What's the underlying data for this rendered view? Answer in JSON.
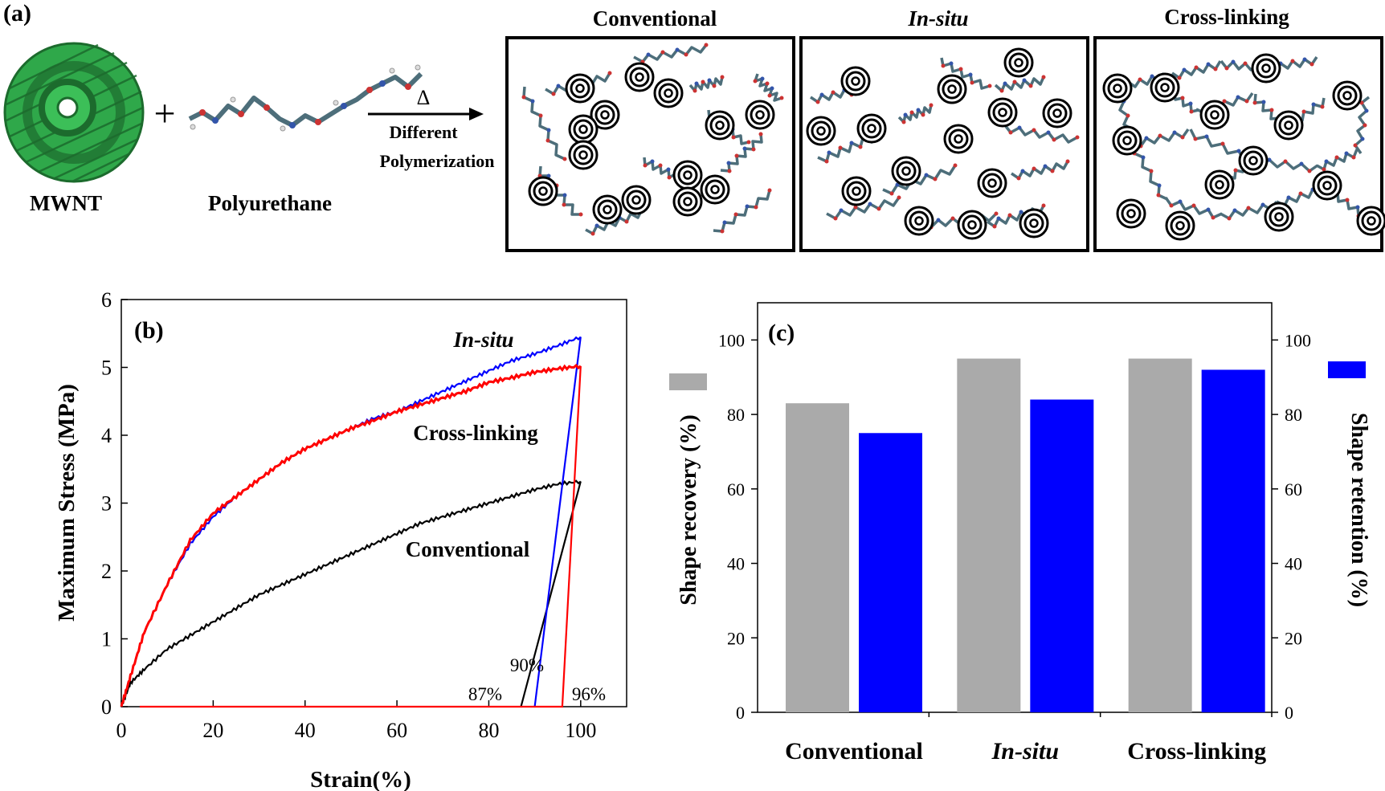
{
  "panel_a": {
    "label": "(a)",
    "mwnt_label": "MWNT",
    "pu_label": "Polyurethane",
    "plus": "+",
    "delta": "Δ",
    "arrow_text_1": "Different",
    "arrow_text_2": "Polymerization",
    "box_titles": [
      "Conventional",
      "In-situ",
      "Cross-linking"
    ],
    "colors": {
      "mwnt_green": "#2fa84a",
      "mwnt_dark": "#1c6b2d",
      "chain": "#4d6e7a",
      "atom_red": "#cc3333",
      "atom_blue": "#3355aa"
    }
  },
  "chart_data": [
    {
      "panel": "(b)",
      "type": "line",
      "xlabel": "Strain(%)",
      "ylabel": "Maximum Stress (MPa)",
      "xlim": [
        0,
        110
      ],
      "ylim": [
        0,
        6
      ],
      "xticks": [
        "0",
        "20",
        "40",
        "60",
        "80",
        "100"
      ],
      "yticks": [
        "0",
        "1",
        "2",
        "3",
        "4",
        "5",
        "6"
      ],
      "grid": false,
      "series": [
        {
          "name": "Conventional",
          "color": "#000000",
          "label": "Conventional",
          "loading": [
            [
              0,
              0
            ],
            [
              2,
              0.35
            ],
            [
              5,
              0.55
            ],
            [
              10,
              0.85
            ],
            [
              15,
              1.05
            ],
            [
              20,
              1.25
            ],
            [
              25,
              1.45
            ],
            [
              30,
              1.65
            ],
            [
              35,
              1.8
            ],
            [
              40,
              1.95
            ],
            [
              45,
              2.1
            ],
            [
              50,
              2.25
            ],
            [
              55,
              2.4
            ],
            [
              60,
              2.55
            ],
            [
              65,
              2.7
            ],
            [
              70,
              2.8
            ],
            [
              75,
              2.9
            ],
            [
              80,
              3.0
            ],
            [
              85,
              3.1
            ],
            [
              90,
              3.2
            ],
            [
              95,
              3.28
            ],
            [
              100,
              3.32
            ]
          ],
          "unloading": [
            [
              100,
              3.32
            ],
            [
              87,
              0
            ],
            [
              87,
              0
            ]
          ]
        },
        {
          "name": "In-situ",
          "color": "#0000ff",
          "label": "In-situ",
          "loading": [
            [
              0,
              0
            ],
            [
              2,
              0.45
            ],
            [
              5,
              1.1
            ],
            [
              10,
              1.8
            ],
            [
              15,
              2.4
            ],
            [
              20,
              2.8
            ],
            [
              25,
              3.1
            ],
            [
              30,
              3.35
            ],
            [
              35,
              3.6
            ],
            [
              40,
              3.8
            ],
            [
              45,
              3.95
            ],
            [
              50,
              4.1
            ],
            [
              55,
              4.25
            ],
            [
              60,
              4.35
            ],
            [
              65,
              4.5
            ],
            [
              70,
              4.65
            ],
            [
              75,
              4.8
            ],
            [
              80,
              4.95
            ],
            [
              85,
              5.1
            ],
            [
              90,
              5.2
            ],
            [
              95,
              5.32
            ],
            [
              100,
              5.45
            ]
          ],
          "unloading": [
            [
              100,
              5.45
            ],
            [
              90,
              0
            ]
          ]
        },
        {
          "name": "Cross-linking",
          "color": "#ff0000",
          "label": "Cross-linking",
          "loading": [
            [
              0,
              0
            ],
            [
              2,
              0.45
            ],
            [
              5,
              1.1
            ],
            [
              10,
              1.8
            ],
            [
              15,
              2.45
            ],
            [
              20,
              2.85
            ],
            [
              25,
              3.1
            ],
            [
              30,
              3.35
            ],
            [
              35,
              3.6
            ],
            [
              40,
              3.8
            ],
            [
              45,
              3.95
            ],
            [
              50,
              4.1
            ],
            [
              55,
              4.22
            ],
            [
              60,
              4.35
            ],
            [
              65,
              4.45
            ],
            [
              70,
              4.55
            ],
            [
              75,
              4.65
            ],
            [
              80,
              4.78
            ],
            [
              85,
              4.85
            ],
            [
              90,
              4.93
            ],
            [
              95,
              4.98
            ],
            [
              100,
              5.02
            ]
          ],
          "unloading": [
            [
              100,
              5.02
            ],
            [
              96,
              0
            ],
            [
              4,
              0
            ]
          ]
        }
      ],
      "annotations": [
        "87%",
        "90%",
        "96%"
      ]
    },
    {
      "panel": "(c)",
      "type": "bar",
      "categories": [
        "Conventional",
        "In-situ",
        "Cross-linking"
      ],
      "category_italic": [
        false,
        true,
        false
      ],
      "series": [
        {
          "name": "Shape recovery",
          "color": "#aaaaaa",
          "values": [
            83,
            95,
            95
          ]
        },
        {
          "name": "Shape retention",
          "color": "#0000ff",
          "values": [
            75,
            84,
            92
          ]
        }
      ],
      "ylabel_left": "Shape recovery (%)",
      "ylabel_right": "Shape retention (%)",
      "ylim_left": [
        0,
        110
      ],
      "ylim_right": [
        0,
        110
      ],
      "yticks_left": [
        "0",
        "20",
        "40",
        "60",
        "80",
        "100"
      ],
      "yticks_right": [
        "0",
        "20",
        "40",
        "60",
        "80",
        "100"
      ],
      "grid": false
    }
  ]
}
